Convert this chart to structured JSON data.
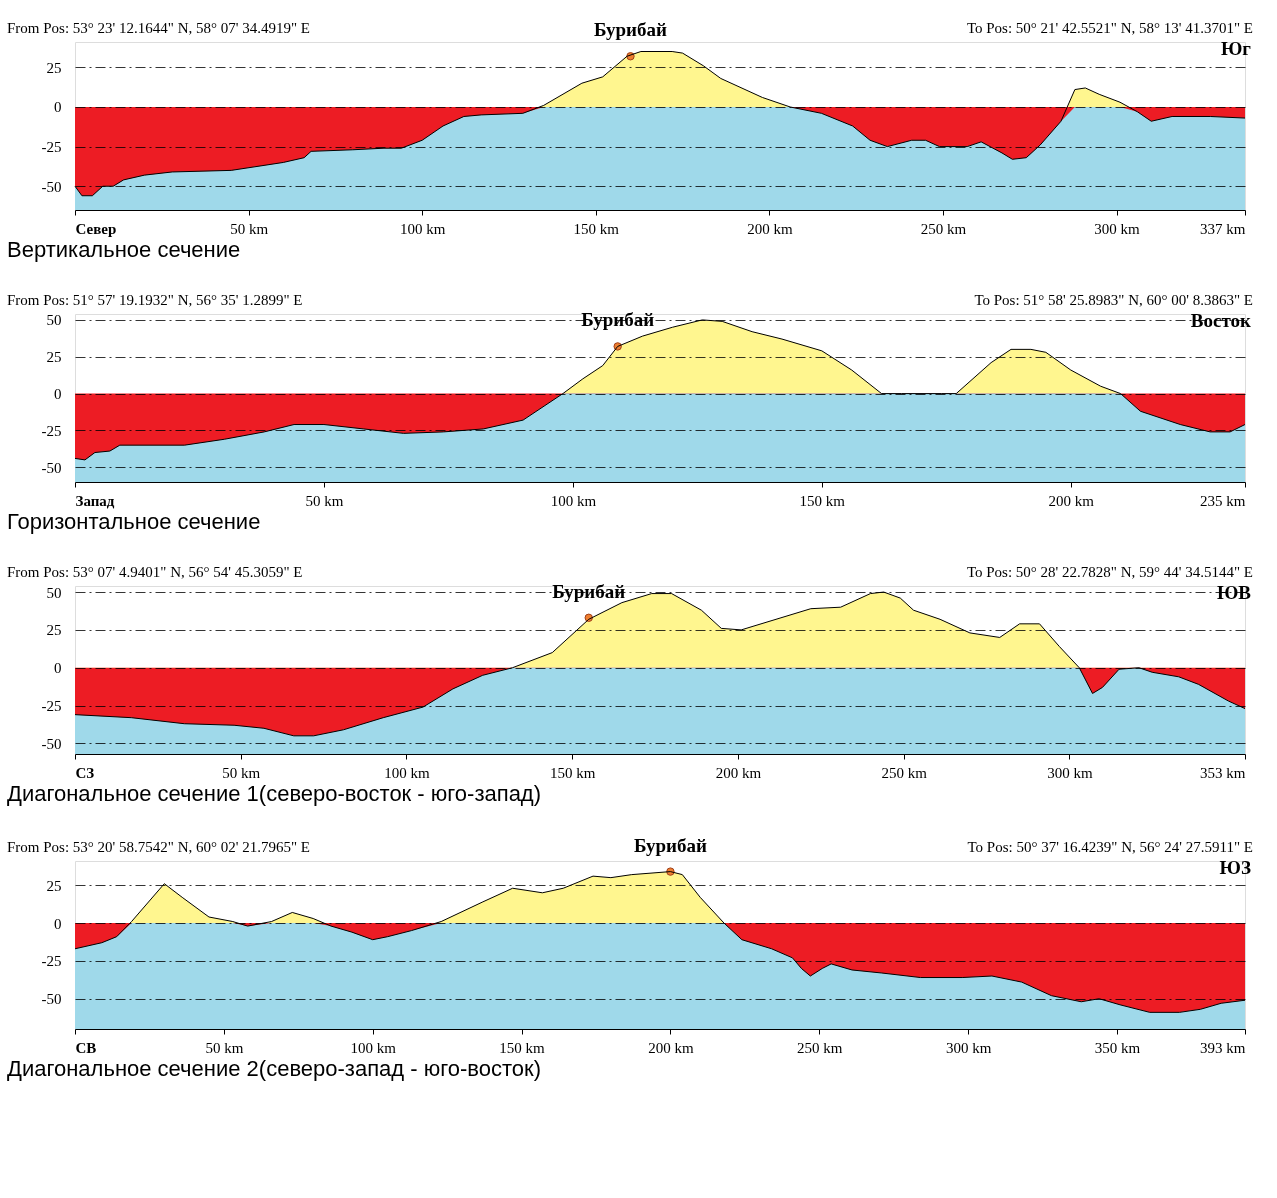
{
  "chart_data": [
    {
      "type": "area",
      "colors": [
        "#fff68f",
        "#9fd9ea"
      ],
      "grid": "y",
      "x": [
        0,
        2,
        5,
        8,
        11,
        14,
        20,
        28,
        45,
        60,
        66,
        68,
        80,
        89,
        94,
        100,
        106,
        112,
        117,
        129,
        135,
        146,
        152,
        159,
        163,
        172,
        175,
        181,
        186,
        198,
        206,
        215,
        224,
        229,
        234,
        241,
        245,
        249,
        257,
        261,
        267,
        270,
        274,
        278,
        284,
        288,
        291,
        295,
        301,
        306,
        310,
        316,
        327,
        337
      ],
      "series": [
        {
          "color": "#000000",
          "values": [
            -50,
            -56,
            -56,
            -50,
            -50,
            -46,
            -43,
            -41,
            -40,
            -35,
            -32,
            -28,
            -27,
            -26,
            -26,
            -21,
            -12,
            -6,
            -5,
            -4,
            1,
            15,
            19,
            32,
            35,
            35,
            34,
            26,
            18,
            6,
            0,
            -4,
            -12,
            -21,
            -25,
            -21,
            -21,
            -25,
            -25,
            -22,
            -29,
            -33,
            -32,
            -24,
            -9,
            11,
            12,
            8,
            3,
            -3,
            -9,
            -6,
            -6,
            -7
          ]
        }
      ],
      "bands": [
        {
          "axis": "y",
          "from": -65,
          "to": 0,
          "color": "#ed1c24"
        }
      ],
      "xlim": [
        0,
        337
      ],
      "ylim": [
        -65,
        41
      ],
      "yticks": [
        -50,
        -25,
        0,
        25
      ],
      "xticks": [
        {
          "value": 0,
          "label": "Север"
        },
        {
          "value": 50,
          "label": "50 km"
        },
        {
          "value": 100,
          "label": "100 km"
        },
        {
          "value": 150,
          "label": "150 km"
        },
        {
          "value": 200,
          "label": "200 km"
        },
        {
          "value": 250,
          "label": "250 km"
        },
        {
          "value": 300,
          "label": "300 km"
        },
        {
          "value": 337,
          "label": "337 km"
        }
      ],
      "annotations": [
        "From Pos: 53° 23' 12.1644\" N, 58° 07' 34.4919\" E",
        "To Pos: 50° 21' 42.5521\" N, 58° 13' 41.3701\" E",
        "Юг",
        "Вертикальное сечение",
        {
          "text": "Бурибай",
          "x": 160,
          "y": 32
        }
      ]
    },
    {
      "type": "area",
      "colors": [
        "#fff68f",
        "#9fd9ea"
      ],
      "grid": "y",
      "x": [
        0,
        2,
        4,
        7,
        9,
        22,
        30,
        38,
        44,
        50,
        58,
        66,
        74,
        82,
        90,
        94,
        98,
        102,
        106,
        109,
        114,
        120,
        126,
        130,
        136,
        142,
        150,
        156,
        162,
        166,
        174,
        177,
        184,
        188,
        192,
        195,
        200,
        206,
        210,
        214,
        222,
        228,
        232,
        235
      ],
      "series": [
        {
          "color": "#000000",
          "values": [
            -44,
            -45,
            -40,
            -39,
            -35,
            -35,
            -31,
            -26,
            -21,
            -21,
            -24,
            -27,
            -26,
            -24,
            -18,
            -9,
            0,
            10,
            19,
            32,
            39,
            45,
            50,
            49,
            42,
            37,
            29,
            16,
            0,
            0,
            0,
            0,
            21,
            30,
            30,
            28,
            16,
            5,
            0,
            -12,
            -21,
            -26,
            -26,
            -21
          ]
        }
      ],
      "bands": [
        {
          "axis": "y",
          "from": -60,
          "to": 0,
          "color": "#ed1c24"
        }
      ],
      "xlim": [
        0,
        235
      ],
      "ylim": [
        -60,
        54
      ],
      "yticks": [
        -50,
        -25,
        0,
        25,
        50
      ],
      "xticks": [
        {
          "value": 0,
          "label": "Запад"
        },
        {
          "value": 50,
          "label": "50 km"
        },
        {
          "value": 100,
          "label": "100 km"
        },
        {
          "value": 150,
          "label": "150 km"
        },
        {
          "value": 200,
          "label": "200 km"
        },
        {
          "value": 235,
          "label": "235 km"
        }
      ],
      "annotations": [
        "From Pos: 51° 57' 19.1932\" N, 56° 35' 1.2899\" E",
        "To Pos: 51° 58' 25.8983\" N, 60° 00' 8.3863\" E",
        "Восток",
        "Горизонтальное сечение",
        {
          "text": "Бурибай",
          "x": 109,
          "y": 32
        }
      ]
    },
    {
      "type": "area",
      "colors": [
        "#fff68f",
        "#9fd9ea"
      ],
      "grid": "y",
      "x": [
        0,
        17,
        33,
        48,
        57,
        66,
        72,
        81,
        93,
        105,
        114,
        123,
        132,
        144,
        155,
        165,
        174,
        180,
        189,
        195,
        201,
        213,
        222,
        231,
        240,
        244,
        249,
        253,
        261,
        270,
        279,
        285,
        291,
        297,
        303,
        307,
        310,
        315,
        321,
        325,
        333,
        339,
        348,
        353
      ],
      "series": [
        {
          "color": "#000000",
          "values": [
            -31,
            -33,
            -37,
            -38,
            -40,
            -45,
            -45,
            -41,
            -33,
            -26,
            -14,
            -5,
            0,
            10,
            32,
            43,
            49,
            49,
            38,
            26,
            25,
            33,
            39,
            40,
            49,
            50,
            46,
            38,
            32,
            23,
            20,
            29,
            29,
            14,
            0,
            -17,
            -13,
            -1,
            0,
            -3,
            -6,
            -11,
            -22,
            -27
          ]
        }
      ],
      "bands": [
        {
          "axis": "y",
          "from": -57,
          "to": 0,
          "color": "#ed1c24"
        }
      ],
      "xlim": [
        0,
        353
      ],
      "ylim": [
        -57,
        54
      ],
      "yticks": [
        -50,
        -25,
        0,
        25,
        50
      ],
      "xticks": [
        {
          "value": 0,
          "label": "СЗ"
        },
        {
          "value": 50,
          "label": "50 km"
        },
        {
          "value": 100,
          "label": "100 km"
        },
        {
          "value": 150,
          "label": "150 km"
        },
        {
          "value": 200,
          "label": "200 km"
        },
        {
          "value": 250,
          "label": "250 km"
        },
        {
          "value": 300,
          "label": "300 km"
        },
        {
          "value": 353,
          "label": "353 km"
        }
      ],
      "annotations": [
        "From Pos: 53° 07' 4.9401\" N, 56° 54' 45.3059\" E",
        "To Pos: 50° 28' 22.7828\" N, 59° 44' 34.5144\" E",
        "ЮВ",
        "Диагональное сечение 1(северо-восток  -  юго-запад)",
        {
          "text": "Бурибай",
          "x": 155,
          "y": 33
        }
      ]
    },
    {
      "type": "area",
      "colors": [
        "#fff68f",
        "#9fd9ea"
      ],
      "grid": "y",
      "x": [
        0,
        9,
        14,
        19,
        30,
        36,
        45,
        53,
        58,
        66,
        73,
        80,
        86,
        93,
        100,
        105,
        113,
        123,
        137,
        147,
        157,
        164,
        174,
        180,
        187,
        200,
        204,
        210,
        218,
        224,
        234,
        241,
        244,
        247,
        251,
        254,
        261,
        271,
        284,
        298,
        308,
        318,
        328,
        338,
        344,
        351,
        361,
        371,
        378,
        385,
        393
      ],
      "series": [
        {
          "color": "#000000",
          "values": [
            -17,
            -13,
            -9,
            1,
            26,
            17,
            4,
            1,
            -2,
            1,
            7,
            3,
            -2,
            -6,
            -11,
            -9,
            -5,
            1,
            14,
            23,
            20,
            23,
            31,
            30,
            32,
            34,
            32,
            17,
            0,
            -11,
            -17,
            -23,
            -30,
            -35,
            -30,
            -27,
            -31,
            -33,
            -36,
            -36,
            -35,
            -39,
            -48,
            -52,
            -50,
            -54,
            -59,
            -59,
            -57,
            -53,
            -51
          ]
        }
      ],
      "bands": [
        {
          "axis": "y",
          "from": -70,
          "to": 0,
          "color": "#ed1c24"
        }
      ],
      "xlim": [
        0,
        393
      ],
      "ylim": [
        -70,
        41
      ],
      "yticks": [
        -50,
        -25,
        0,
        25
      ],
      "xticks": [
        {
          "value": 0,
          "label": "СВ"
        },
        {
          "value": 50,
          "label": "50 km"
        },
        {
          "value": 100,
          "label": "100 km"
        },
        {
          "value": 150,
          "label": "150 km"
        },
        {
          "value": 200,
          "label": "200 km"
        },
        {
          "value": 250,
          "label": "250 km"
        },
        {
          "value": 300,
          "label": "300 km"
        },
        {
          "value": 350,
          "label": "350 km"
        },
        {
          "value": 393,
          "label": "393 km"
        }
      ],
      "annotations": [
        "From Pos: 53° 20' 58.7542\" N, 60° 02' 21.7965\" E",
        "To Pos: 50° 37' 16.4239\" N, 56° 24' 27.5911\" E",
        "ЮЗ",
        "Диагональное сечение 2(северо-запад  - юго-восток)",
        {
          "text": "Бурибай",
          "x": 200,
          "y": 34
        }
      ]
    }
  ]
}
